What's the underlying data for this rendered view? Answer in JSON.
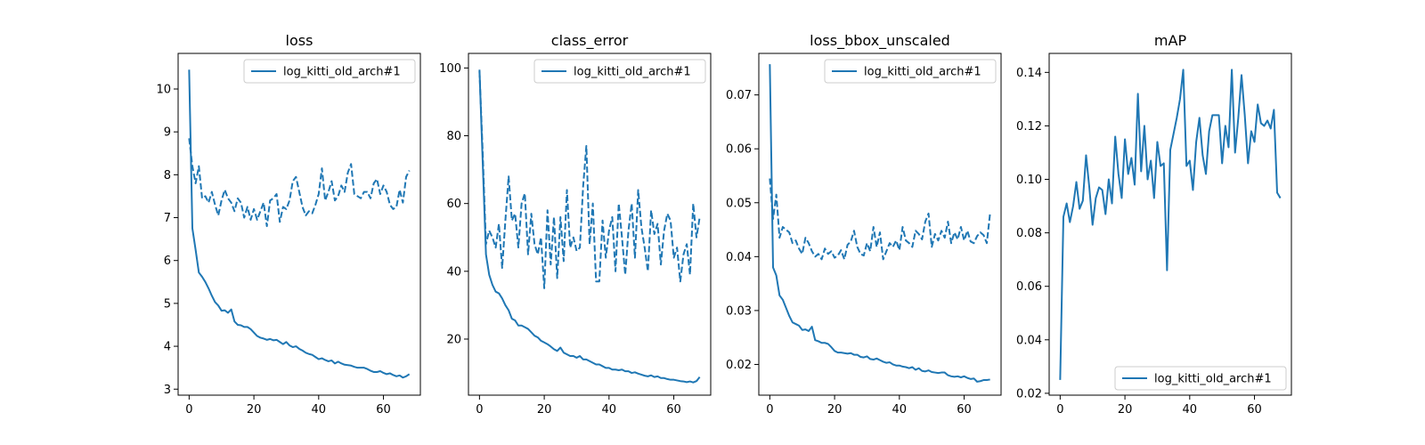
{
  "line_color": "#1f77b4",
  "chart_data": [
    {
      "type": "line",
      "title": "loss",
      "xlabel": "",
      "ylabel": "",
      "xlim": [
        -3.4,
        71.4
      ],
      "ylim": [
        2.86,
        10.83
      ],
      "xticks": [
        0,
        20,
        40,
        60
      ],
      "yticks": [
        3,
        4,
        5,
        6,
        7,
        8,
        9,
        10
      ],
      "legend": {
        "position": "top-right",
        "entries": [
          "log_kitti_old_arch#1"
        ]
      },
      "series": [
        {
          "name": "log_kitti_old_arch#1",
          "style": "solid",
          "x": [
            0,
            1,
            2,
            3,
            4,
            5,
            6,
            7,
            8,
            9,
            10,
            11,
            12,
            13,
            14,
            15,
            16,
            17,
            18,
            19,
            20,
            21,
            22,
            23,
            24,
            25,
            26,
            27,
            28,
            29,
            30,
            31,
            32,
            33,
            34,
            35,
            36,
            37,
            38,
            39,
            40,
            41,
            42,
            43,
            44,
            45,
            46,
            47,
            48,
            49,
            50,
            51,
            52,
            53,
            54,
            55,
            56,
            57,
            58,
            59,
            60,
            61,
            62,
            63,
            64,
            65,
            66,
            67,
            68
          ],
          "y": [
            10.45,
            6.75,
            6.25,
            5.72,
            5.62,
            5.5,
            5.35,
            5.18,
            5.03,
            4.95,
            4.83,
            4.84,
            4.78,
            4.86,
            4.58,
            4.5,
            4.49,
            4.45,
            4.45,
            4.4,
            4.32,
            4.24,
            4.2,
            4.18,
            4.15,
            4.17,
            4.14,
            4.15,
            4.1,
            4.05,
            4.1,
            4.02,
            3.98,
            4.0,
            3.94,
            3.9,
            3.85,
            3.82,
            3.8,
            3.75,
            3.7,
            3.72,
            3.68,
            3.65,
            3.67,
            3.6,
            3.64,
            3.6,
            3.57,
            3.56,
            3.55,
            3.52,
            3.5,
            3.5,
            3.5,
            3.47,
            3.43,
            3.4,
            3.4,
            3.42,
            3.38,
            3.35,
            3.37,
            3.33,
            3.3,
            3.32,
            3.27,
            3.3,
            3.35
          ]
        },
        {
          "name": "",
          "style": "dashed",
          "x": [
            0,
            1,
            2,
            3,
            4,
            5,
            6,
            7,
            8,
            9,
            10,
            11,
            12,
            13,
            14,
            15,
            16,
            17,
            18,
            19,
            20,
            21,
            22,
            23,
            24,
            25,
            26,
            27,
            28,
            29,
            30,
            31,
            32,
            33,
            34,
            35,
            36,
            37,
            38,
            39,
            40,
            41,
            42,
            43,
            44,
            45,
            46,
            47,
            48,
            49,
            50,
            51,
            52,
            53,
            54,
            55,
            56,
            57,
            58,
            59,
            60,
            61,
            62,
            63,
            64,
            65,
            66,
            67,
            68
          ],
          "y": [
            8.85,
            8.2,
            7.8,
            8.2,
            7.45,
            7.5,
            7.35,
            7.6,
            7.3,
            7.05,
            7.4,
            7.65,
            7.45,
            7.35,
            7.15,
            7.45,
            7.35,
            7.0,
            7.25,
            6.95,
            7.2,
            6.95,
            7.15,
            7.35,
            6.8,
            7.4,
            7.45,
            7.55,
            6.9,
            7.25,
            7.2,
            7.4,
            7.85,
            7.95,
            7.6,
            7.25,
            7.05,
            7.15,
            7.1,
            7.3,
            7.55,
            8.15,
            7.4,
            7.6,
            7.85,
            7.4,
            7.5,
            7.75,
            7.6,
            8.05,
            8.25,
            7.55,
            7.5,
            7.45,
            7.6,
            7.6,
            7.45,
            7.8,
            7.9,
            7.55,
            7.75,
            7.6,
            7.3,
            7.2,
            7.25,
            7.65,
            7.35,
            7.95,
            8.1
          ]
        }
      ]
    },
    {
      "type": "line",
      "title": "class_error",
      "xlabel": "",
      "ylabel": "",
      "xlim": [
        -3.4,
        71.4
      ],
      "ylim": [
        3.45,
        104.3
      ],
      "xticks": [
        0,
        20,
        40,
        60
      ],
      "yticks": [
        20,
        40,
        60,
        80,
        100
      ],
      "legend": {
        "position": "top-right",
        "entries": [
          "log_kitti_old_arch#1"
        ]
      },
      "series": [
        {
          "name": "log_kitti_old_arch#1",
          "style": "solid",
          "x": [
            0,
            1,
            2,
            3,
            4,
            5,
            6,
            7,
            8,
            9,
            10,
            11,
            12,
            13,
            14,
            15,
            16,
            17,
            18,
            19,
            20,
            21,
            22,
            23,
            24,
            25,
            26,
            27,
            28,
            29,
            30,
            31,
            32,
            33,
            34,
            35,
            36,
            37,
            38,
            39,
            40,
            41,
            42,
            43,
            44,
            45,
            46,
            47,
            48,
            49,
            50,
            51,
            52,
            53,
            54,
            55,
            56,
            57,
            58,
            59,
            60,
            61,
            62,
            63,
            64,
            65,
            66,
            67,
            68
          ],
          "y": [
            99.5,
            72,
            45,
            39,
            36,
            34,
            33.5,
            32,
            30,
            28.5,
            26,
            25.5,
            24,
            24,
            23.5,
            23,
            22,
            21,
            20.5,
            19.5,
            19,
            18.5,
            17.8,
            17,
            16.5,
            17.5,
            16,
            15.5,
            15,
            15,
            14.5,
            15,
            14,
            14,
            13.5,
            13,
            12.5,
            12.5,
            12,
            11.5,
            11.5,
            11,
            11,
            10.8,
            11,
            10.5,
            10.5,
            10,
            10.2,
            9.8,
            9.5,
            9.2,
            9,
            9.3,
            8.8,
            9,
            8.5,
            8.5,
            8.2,
            8,
            8,
            7.8,
            7.6,
            7.5,
            7.3,
            7.5,
            7.2,
            7.6,
            8.8
          ]
        },
        {
          "name": "",
          "style": "dashed",
          "x": [
            0,
            1,
            2,
            3,
            4,
            5,
            6,
            7,
            8,
            9,
            10,
            11,
            12,
            13,
            14,
            15,
            16,
            17,
            18,
            19,
            20,
            21,
            22,
            23,
            24,
            25,
            26,
            27,
            28,
            29,
            30,
            31,
            32,
            33,
            34,
            35,
            36,
            37,
            38,
            39,
            40,
            41,
            42,
            43,
            44,
            45,
            46,
            47,
            48,
            49,
            50,
            51,
            52,
            53,
            54,
            55,
            56,
            57,
            58,
            59,
            60,
            61,
            62,
            63,
            64,
            65,
            66,
            67,
            68
          ],
          "y": [
            99,
            75,
            48,
            52,
            50,
            47,
            54,
            41,
            55,
            68,
            55,
            57,
            47,
            60,
            63,
            45,
            57,
            48,
            45,
            50,
            35,
            58,
            42,
            56,
            38,
            56,
            43,
            64,
            47,
            50,
            46,
            47,
            65,
            77,
            48,
            60,
            37,
            37,
            55,
            44,
            52,
            56,
            40,
            60,
            50,
            39,
            52,
            60,
            44,
            64,
            53,
            47,
            40,
            58,
            51,
            54,
            42,
            52,
            57,
            55,
            44,
            47,
            37,
            45,
            48,
            39,
            60,
            50,
            56
          ]
        }
      ]
    },
    {
      "type": "line",
      "title": "loss_bbox_unscaled",
      "xlabel": "",
      "ylabel": "",
      "xlim": [
        -3.4,
        71.4
      ],
      "ylim": [
        0.0143,
        0.0777
      ],
      "xticks": [
        0,
        20,
        40,
        60
      ],
      "yticks": [
        0.02,
        0.03,
        0.04,
        0.05,
        0.06,
        0.07
      ],
      "legend": {
        "position": "top-right",
        "entries": [
          "log_kitti_old_arch#1"
        ]
      },
      "series": [
        {
          "name": "log_kitti_old_arch#1",
          "style": "solid",
          "x": [
            0,
            1,
            2,
            3,
            4,
            5,
            6,
            7,
            8,
            9,
            10,
            11,
            12,
            13,
            14,
            15,
            16,
            17,
            18,
            19,
            20,
            21,
            22,
            23,
            24,
            25,
            26,
            27,
            28,
            29,
            30,
            31,
            32,
            33,
            34,
            35,
            36,
            37,
            38,
            39,
            40,
            41,
            42,
            43,
            44,
            45,
            46,
            47,
            48,
            49,
            50,
            51,
            52,
            53,
            54,
            55,
            56,
            57,
            58,
            59,
            60,
            61,
            62,
            63,
            64,
            65,
            66,
            67,
            68
          ],
          "y": [
            0.0757,
            0.038,
            0.0365,
            0.0328,
            0.032,
            0.0305,
            0.029,
            0.0278,
            0.0275,
            0.0272,
            0.0264,
            0.0265,
            0.0262,
            0.027,
            0.0245,
            0.0243,
            0.024,
            0.024,
            0.0238,
            0.0232,
            0.0225,
            0.0222,
            0.0222,
            0.0221,
            0.022,
            0.0221,
            0.0218,
            0.0218,
            0.0214,
            0.0213,
            0.0215,
            0.021,
            0.0209,
            0.0211,
            0.0208,
            0.0205,
            0.0203,
            0.0204,
            0.02,
            0.0198,
            0.0198,
            0.0196,
            0.0195,
            0.0193,
            0.0195,
            0.019,
            0.0193,
            0.0188,
            0.0187,
            0.0189,
            0.0186,
            0.0185,
            0.0184,
            0.0185,
            0.0185,
            0.018,
            0.0178,
            0.0177,
            0.0178,
            0.0176,
            0.0178,
            0.0175,
            0.0173,
            0.0174,
            0.0168,
            0.0169,
            0.0171,
            0.0171,
            0.0172
          ]
        },
        {
          "name": "",
          "style": "dashed",
          "x": [
            0,
            1,
            2,
            3,
            4,
            5,
            6,
            7,
            8,
            9,
            10,
            11,
            12,
            13,
            14,
            15,
            16,
            17,
            18,
            19,
            20,
            21,
            22,
            23,
            24,
            25,
            26,
            27,
            28,
            29,
            30,
            31,
            32,
            33,
            34,
            35,
            36,
            37,
            38,
            39,
            40,
            41,
            42,
            43,
            44,
            45,
            46,
            47,
            48,
            49,
            50,
            51,
            52,
            53,
            54,
            55,
            56,
            57,
            58,
            59,
            60,
            61,
            62,
            63,
            64,
            65,
            66,
            67,
            68
          ],
          "y": [
            0.0545,
            0.047,
            0.0515,
            0.0435,
            0.0455,
            0.045,
            0.0445,
            0.0425,
            0.043,
            0.0415,
            0.0405,
            0.0435,
            0.0425,
            0.041,
            0.04,
            0.0405,
            0.0395,
            0.0415,
            0.0405,
            0.041,
            0.0398,
            0.0402,
            0.0412,
            0.0395,
            0.0422,
            0.0428,
            0.0448,
            0.0418,
            0.0405,
            0.0402,
            0.0425,
            0.041,
            0.0455,
            0.0418,
            0.0445,
            0.0395,
            0.041,
            0.0425,
            0.0418,
            0.043,
            0.0412,
            0.0455,
            0.043,
            0.0425,
            0.0418,
            0.0448,
            0.0442,
            0.0432,
            0.0465,
            0.048,
            0.0418,
            0.0442,
            0.043,
            0.0448,
            0.0435,
            0.0465,
            0.0425,
            0.0445,
            0.0432,
            0.0455,
            0.043,
            0.0448,
            0.0428,
            0.0425,
            0.0438,
            0.0445,
            0.044,
            0.0425,
            0.048
          ]
        }
      ]
    },
    {
      "type": "line",
      "title": "mAP",
      "xlabel": "",
      "ylabel": "",
      "xlim": [
        -3.4,
        71.4
      ],
      "ylim": [
        0.0193,
        0.1471
      ],
      "xticks": [
        0,
        20,
        40,
        60
      ],
      "yticks": [
        0.02,
        0.04,
        0.06,
        0.08,
        0.1,
        0.12,
        0.14
      ],
      "legend": {
        "position": "bottom-right",
        "entries": [
          "log_kitti_old_arch#1"
        ]
      },
      "series": [
        {
          "name": "log_kitti_old_arch#1",
          "style": "solid",
          "x": [
            0,
            1,
            2,
            3,
            4,
            5,
            6,
            7,
            8,
            9,
            10,
            11,
            12,
            13,
            14,
            15,
            16,
            17,
            18,
            19,
            20,
            21,
            22,
            23,
            24,
            25,
            26,
            27,
            28,
            29,
            30,
            31,
            32,
            33,
            34,
            35,
            36,
            37,
            38,
            39,
            40,
            41,
            42,
            43,
            44,
            45,
            46,
            47,
            48,
            49,
            50,
            51,
            52,
            53,
            54,
            55,
            56,
            57,
            58,
            59,
            60,
            61,
            62,
            63,
            64,
            65,
            66,
            67,
            68
          ],
          "y": [
            0.025,
            0.086,
            0.091,
            0.084,
            0.09,
            0.099,
            0.089,
            0.092,
            0.109,
            0.097,
            0.083,
            0.093,
            0.097,
            0.096,
            0.087,
            0.1,
            0.091,
            0.116,
            0.102,
            0.093,
            0.115,
            0.102,
            0.108,
            0.098,
            0.132,
            0.103,
            0.12,
            0.1,
            0.107,
            0.093,
            0.114,
            0.105,
            0.106,
            0.066,
            0.111,
            0.117,
            0.123,
            0.13,
            0.141,
            0.105,
            0.107,
            0.096,
            0.114,
            0.123,
            0.109,
            0.102,
            0.118,
            0.124,
            0.124,
            0.124,
            0.106,
            0.12,
            0.112,
            0.141,
            0.11,
            0.123,
            0.139,
            0.124,
            0.106,
            0.118,
            0.114,
            0.128,
            0.121,
            0.12,
            0.122,
            0.119,
            0.126,
            0.095,
            0.093
          ]
        }
      ]
    }
  ]
}
